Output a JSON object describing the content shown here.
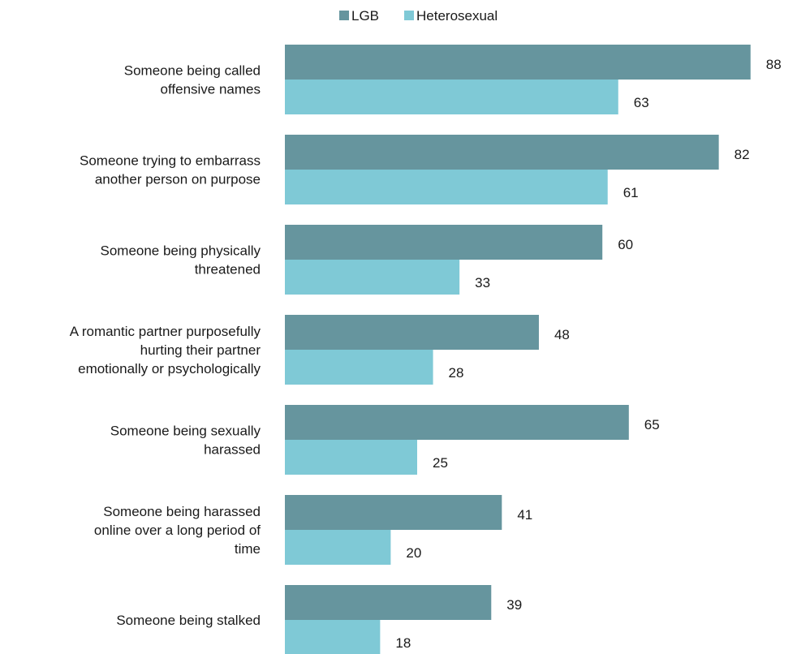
{
  "chart_data": {
    "type": "bar",
    "orientation": "horizontal",
    "categories": [
      [
        "Someone being called",
        "offensive names"
      ],
      [
        "Someone trying to embarrass",
        "another person on purpose"
      ],
      [
        "Someone being physically",
        "threatened"
      ],
      [
        "A romantic partner purposefully",
        "hurting their partner",
        "emotionally or psychologically"
      ],
      [
        "Someone being sexually",
        "harassed"
      ],
      [
        "Someone being harassed",
        "online over a long period of",
        "time"
      ],
      [
        "Someone being stalked"
      ]
    ],
    "series": [
      {
        "name": "LGB",
        "color": "#66959e",
        "values": [
          88,
          82,
          60,
          48,
          65,
          41,
          39
        ]
      },
      {
        "name": "Heterosexual",
        "color": "#7fc9d6",
        "values": [
          63,
          61,
          33,
          28,
          25,
          20,
          18
        ]
      }
    ],
    "legend_position": "top",
    "grid": false,
    "data_labels": true
  }
}
